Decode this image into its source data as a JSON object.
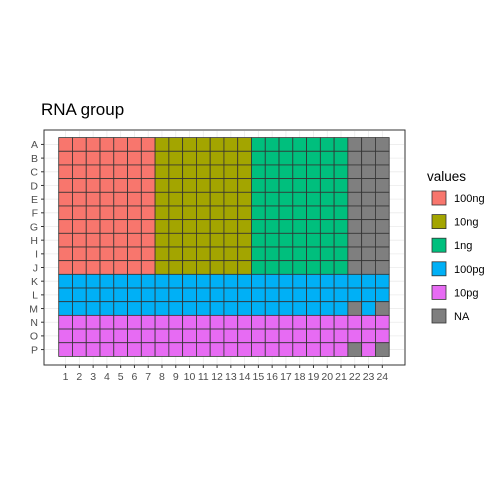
{
  "chart_data": {
    "type": "heatmap",
    "title": "RNA group",
    "xlabel": "",
    "ylabel": "",
    "x": [
      "1",
      "2",
      "3",
      "4",
      "5",
      "6",
      "7",
      "8",
      "9",
      "10",
      "11",
      "12",
      "13",
      "14",
      "15",
      "16",
      "17",
      "18",
      "19",
      "20",
      "21",
      "22",
      "23",
      "24"
    ],
    "y": [
      "A",
      "B",
      "C",
      "D",
      "E",
      "F",
      "G",
      "H",
      "I",
      "J",
      "K",
      "L",
      "M",
      "N",
      "O",
      "P"
    ],
    "grid": true,
    "legend": {
      "title": "values",
      "position": "right",
      "entries": [
        {
          "label": "100ng",
          "color": "#F8766D"
        },
        {
          "label": "10ng",
          "color": "#A3A500"
        },
        {
          "label": "1ng",
          "color": "#00BF7D"
        },
        {
          "label": "100pg",
          "color": "#00B0F6"
        },
        {
          "label": "10pg",
          "color": "#E76BF3"
        },
        {
          "label": "NA",
          "color": "#7F7F7F"
        }
      ]
    },
    "rows": [
      [
        "100ng",
        "100ng",
        "100ng",
        "100ng",
        "100ng",
        "100ng",
        "100ng",
        "10ng",
        "10ng",
        "10ng",
        "10ng",
        "10ng",
        "10ng",
        "10ng",
        "1ng",
        "1ng",
        "1ng",
        "1ng",
        "1ng",
        "1ng",
        "1ng",
        "NA",
        "NA",
        "NA"
      ],
      [
        "100ng",
        "100ng",
        "100ng",
        "100ng",
        "100ng",
        "100ng",
        "100ng",
        "10ng",
        "10ng",
        "10ng",
        "10ng",
        "10ng",
        "10ng",
        "10ng",
        "1ng",
        "1ng",
        "1ng",
        "1ng",
        "1ng",
        "1ng",
        "1ng",
        "NA",
        "NA",
        "NA"
      ],
      [
        "100ng",
        "100ng",
        "100ng",
        "100ng",
        "100ng",
        "100ng",
        "100ng",
        "10ng",
        "10ng",
        "10ng",
        "10ng",
        "10ng",
        "10ng",
        "10ng",
        "1ng",
        "1ng",
        "1ng",
        "1ng",
        "1ng",
        "1ng",
        "1ng",
        "NA",
        "NA",
        "NA"
      ],
      [
        "100ng",
        "100ng",
        "100ng",
        "100ng",
        "100ng",
        "100ng",
        "100ng",
        "10ng",
        "10ng",
        "10ng",
        "10ng",
        "10ng",
        "10ng",
        "10ng",
        "1ng",
        "1ng",
        "1ng",
        "1ng",
        "1ng",
        "1ng",
        "1ng",
        "NA",
        "NA",
        "NA"
      ],
      [
        "100ng",
        "100ng",
        "100ng",
        "100ng",
        "100ng",
        "100ng",
        "100ng",
        "10ng",
        "10ng",
        "10ng",
        "10ng",
        "10ng",
        "10ng",
        "10ng",
        "1ng",
        "1ng",
        "1ng",
        "1ng",
        "1ng",
        "1ng",
        "1ng",
        "NA",
        "NA",
        "NA"
      ],
      [
        "100ng",
        "100ng",
        "100ng",
        "100ng",
        "100ng",
        "100ng",
        "100ng",
        "10ng",
        "10ng",
        "10ng",
        "10ng",
        "10ng",
        "10ng",
        "10ng",
        "1ng",
        "1ng",
        "1ng",
        "1ng",
        "1ng",
        "1ng",
        "1ng",
        "NA",
        "NA",
        "NA"
      ],
      [
        "100ng",
        "100ng",
        "100ng",
        "100ng",
        "100ng",
        "100ng",
        "100ng",
        "10ng",
        "10ng",
        "10ng",
        "10ng",
        "10ng",
        "10ng",
        "10ng",
        "1ng",
        "1ng",
        "1ng",
        "1ng",
        "1ng",
        "1ng",
        "1ng",
        "NA",
        "NA",
        "NA"
      ],
      [
        "100ng",
        "100ng",
        "100ng",
        "100ng",
        "100ng",
        "100ng",
        "100ng",
        "10ng",
        "10ng",
        "10ng",
        "10ng",
        "10ng",
        "10ng",
        "10ng",
        "1ng",
        "1ng",
        "1ng",
        "1ng",
        "1ng",
        "1ng",
        "1ng",
        "NA",
        "NA",
        "NA"
      ],
      [
        "100ng",
        "100ng",
        "100ng",
        "100ng",
        "100ng",
        "100ng",
        "100ng",
        "10ng",
        "10ng",
        "10ng",
        "10ng",
        "10ng",
        "10ng",
        "10ng",
        "1ng",
        "1ng",
        "1ng",
        "1ng",
        "1ng",
        "1ng",
        "1ng",
        "NA",
        "NA",
        "NA"
      ],
      [
        "100ng",
        "100ng",
        "100ng",
        "100ng",
        "100ng",
        "100ng",
        "100ng",
        "10ng",
        "10ng",
        "10ng",
        "10ng",
        "10ng",
        "10ng",
        "10ng",
        "1ng",
        "1ng",
        "1ng",
        "1ng",
        "1ng",
        "1ng",
        "1ng",
        "NA",
        "NA",
        "NA"
      ],
      [
        "100pg",
        "100pg",
        "100pg",
        "100pg",
        "100pg",
        "100pg",
        "100pg",
        "100pg",
        "100pg",
        "100pg",
        "100pg",
        "100pg",
        "100pg",
        "100pg",
        "100pg",
        "100pg",
        "100pg",
        "100pg",
        "100pg",
        "100pg",
        "100pg",
        "100pg",
        "100pg",
        "100pg"
      ],
      [
        "100pg",
        "100pg",
        "100pg",
        "100pg",
        "100pg",
        "100pg",
        "100pg",
        "100pg",
        "100pg",
        "100pg",
        "100pg",
        "100pg",
        "100pg",
        "100pg",
        "100pg",
        "100pg",
        "100pg",
        "100pg",
        "100pg",
        "100pg",
        "100pg",
        "100pg",
        "100pg",
        "100pg"
      ],
      [
        "100pg",
        "100pg",
        "100pg",
        "100pg",
        "100pg",
        "100pg",
        "100pg",
        "100pg",
        "100pg",
        "100pg",
        "100pg",
        "100pg",
        "100pg",
        "100pg",
        "100pg",
        "100pg",
        "100pg",
        "100pg",
        "100pg",
        "100pg",
        "100pg",
        "NA",
        "100pg",
        "NA"
      ],
      [
        "10pg",
        "10pg",
        "10pg",
        "10pg",
        "10pg",
        "10pg",
        "10pg",
        "10pg",
        "10pg",
        "10pg",
        "10pg",
        "10pg",
        "10pg",
        "10pg",
        "10pg",
        "10pg",
        "10pg",
        "10pg",
        "10pg",
        "10pg",
        "10pg",
        "10pg",
        "10pg",
        "10pg"
      ],
      [
        "10pg",
        "10pg",
        "10pg",
        "10pg",
        "10pg",
        "10pg",
        "10pg",
        "10pg",
        "10pg",
        "10pg",
        "10pg",
        "10pg",
        "10pg",
        "10pg",
        "10pg",
        "10pg",
        "10pg",
        "10pg",
        "10pg",
        "10pg",
        "10pg",
        "10pg",
        "10pg",
        "10pg"
      ],
      [
        "10pg",
        "10pg",
        "10pg",
        "10pg",
        "10pg",
        "10pg",
        "10pg",
        "10pg",
        "10pg",
        "10pg",
        "10pg",
        "10pg",
        "10pg",
        "10pg",
        "10pg",
        "10pg",
        "10pg",
        "10pg",
        "10pg",
        "10pg",
        "10pg",
        "NA",
        "10pg",
        "NA"
      ]
    ]
  }
}
